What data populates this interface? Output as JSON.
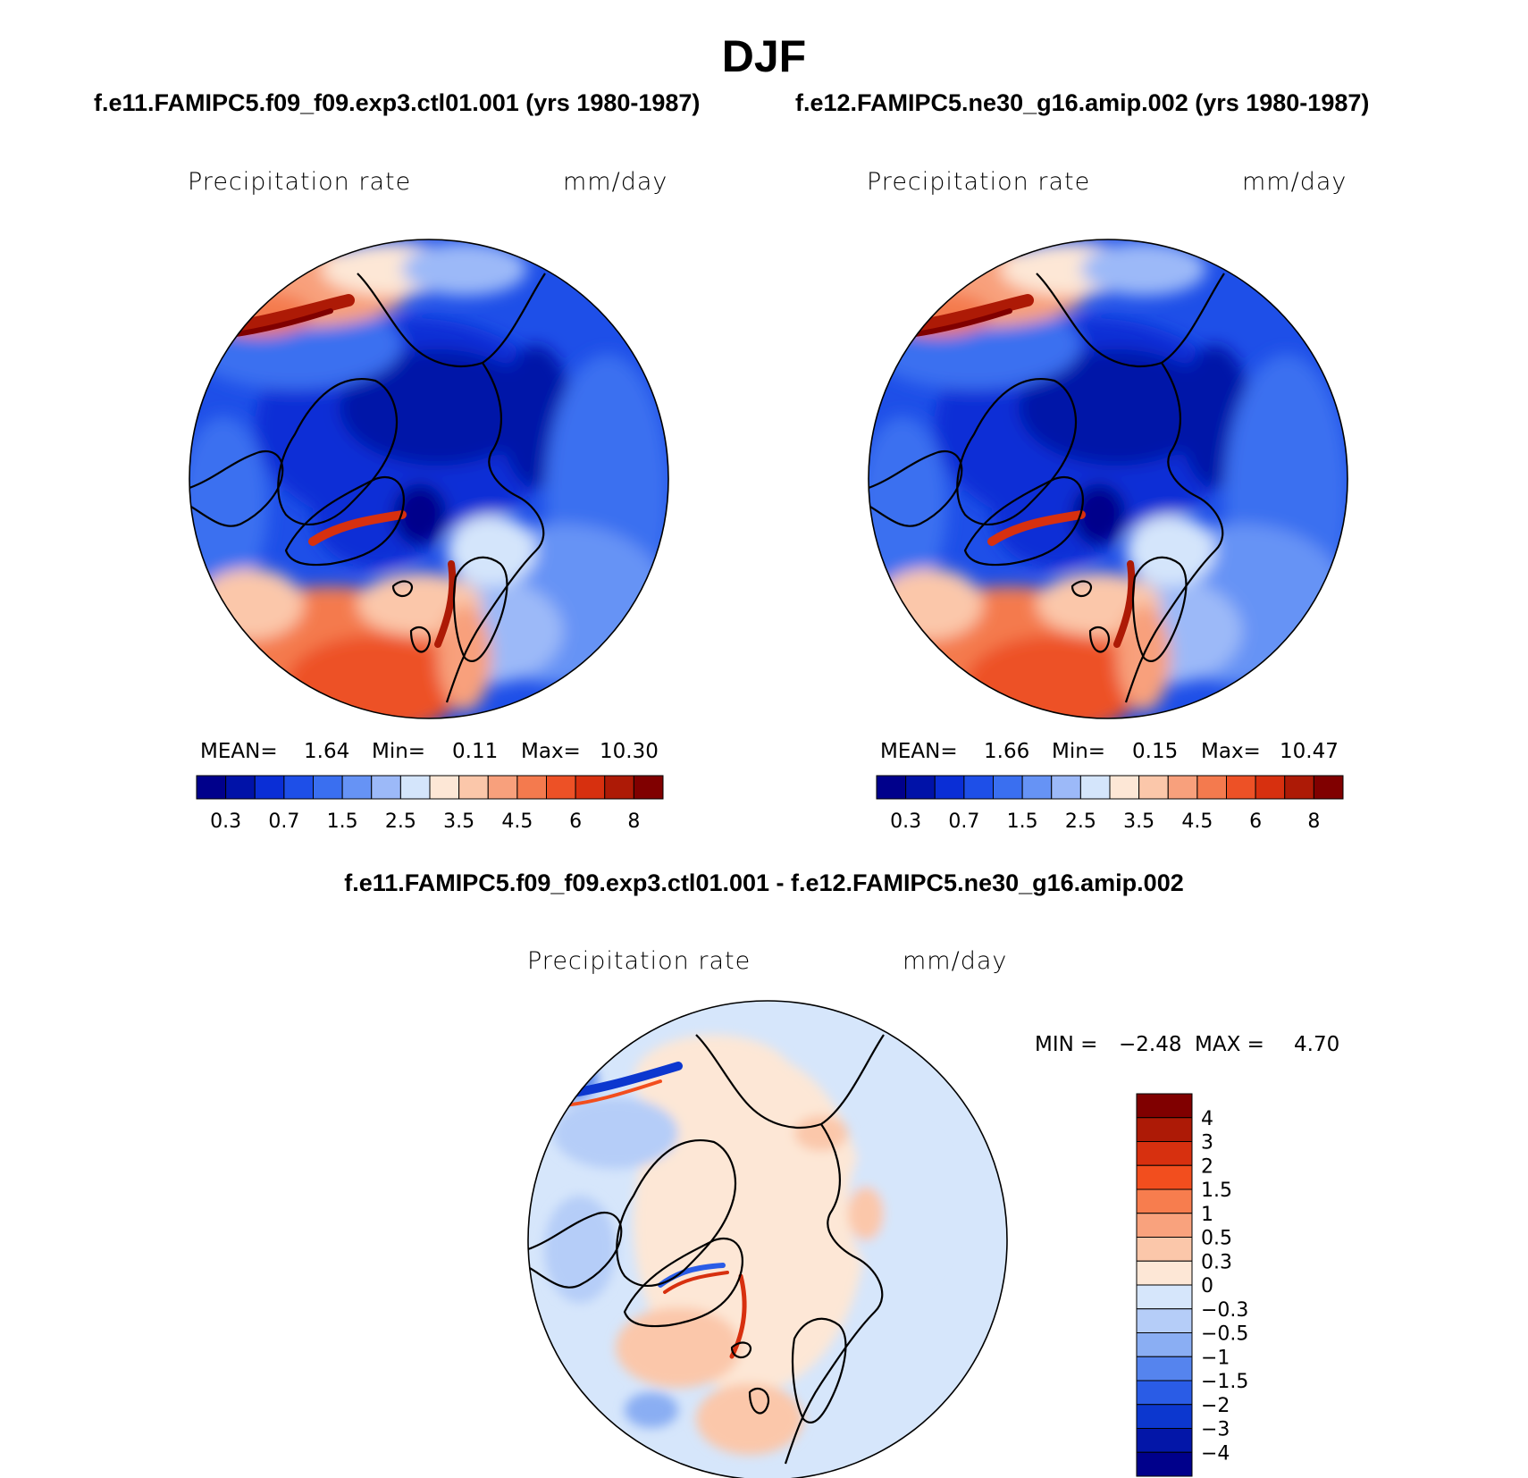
{
  "title": "DJF",
  "panels": [
    {
      "case_title": "f.e11.FAMIPC5.f09_f09.exp3.ctl01.001 (yrs 1980-1987)",
      "variable": "Precipitation rate",
      "units": "mm/day",
      "stats": {
        "mean_label": "MEAN=",
        "mean": "1.64",
        "min_label": "Min=",
        "min": "0.11",
        "max_label": "Max=",
        "max": "10.30"
      }
    },
    {
      "case_title": "f.e12.FAMIPC5.ne30_g16.amip.002 (yrs 1980-1987)",
      "variable": "Precipitation rate",
      "units": "mm/day",
      "stats": {
        "mean_label": "MEAN=",
        "mean": "1.66",
        "min_label": "Min=",
        "min": "0.15",
        "max_label": "Max=",
        "max": "10.47"
      }
    }
  ],
  "difference": {
    "title": "f.e11.FAMIPC5.f09_f09.exp3.ctl01.001 - f.e12.FAMIPC5.ne30_g16.amip.002",
    "variable": "Precipitation rate",
    "units": "mm/day",
    "stats": {
      "min_label": "MIN =",
      "min": "−2.48",
      "max_label": "MAX =",
      "max": "4.70"
    }
  },
  "chart_data": [
    {
      "type": "heatmap",
      "projection": "north-polar-stereographic",
      "colorbar": {
        "orientation": "horizontal",
        "tick_labels": [
          "0.3",
          "0.7",
          "1.5",
          "2.5",
          "3.5",
          "4.5",
          "6",
          "8"
        ],
        "colors": [
          "#00008b",
          "#0012a8",
          "#0a2ed6",
          "#1e4fe8",
          "#3a6ff0",
          "#6693f5",
          "#9cb9f8",
          "#d4e5fb",
          "#fde7d6",
          "#fbc7aa",
          "#f8a07c",
          "#f47a4e",
          "#ed5126",
          "#d7300f",
          "#ad1a06",
          "#800000"
        ]
      }
    },
    {
      "type": "heatmap",
      "projection": "north-polar-stereographic",
      "colorbar": {
        "orientation": "horizontal",
        "tick_labels": [
          "0.3",
          "0.7",
          "1.5",
          "2.5",
          "3.5",
          "4.5",
          "6",
          "8"
        ],
        "colors": [
          "#00008b",
          "#0012a8",
          "#0a2ed6",
          "#1e4fe8",
          "#3a6ff0",
          "#6693f5",
          "#9cb9f8",
          "#d4e5fb",
          "#fde7d6",
          "#fbc7aa",
          "#f8a07c",
          "#f47a4e",
          "#ed5126",
          "#d7300f",
          "#ad1a06",
          "#800000"
        ]
      }
    },
    {
      "type": "heatmap",
      "projection": "north-polar-stereographic",
      "colorbar": {
        "orientation": "vertical",
        "tick_labels": [
          "4",
          "3",
          "2",
          "1.5",
          "1",
          "0.5",
          "0.3",
          "0",
          "−0.3",
          "−0.5",
          "−1",
          "−1.5",
          "−2",
          "−3",
          "−4"
        ],
        "colors": [
          "#800000",
          "#ad1a06",
          "#d7300f",
          "#f24e1e",
          "#f77d4e",
          "#f9a27d",
          "#fbc7aa",
          "#fde7d6",
          "#d6e6fb",
          "#b5cdf8",
          "#8aaef3",
          "#5584ee",
          "#2a5ce6",
          "#0c37cf",
          "#0316a8",
          "#00008b"
        ]
      }
    }
  ]
}
